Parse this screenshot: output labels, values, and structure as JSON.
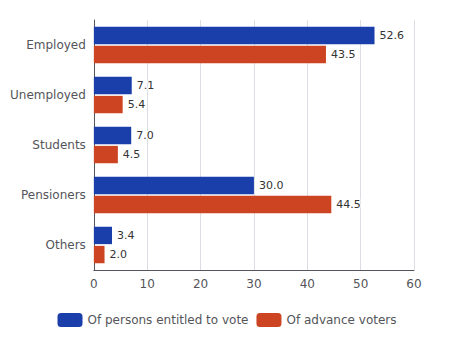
{
  "chart_data": {
    "type": "bar",
    "orientation": "horizontal",
    "categories": [
      "Employed",
      "Unemployed",
      "Students",
      "Pensioners",
      "Others"
    ],
    "series": [
      {
        "name": "Of persons entitled to vote",
        "color": "#1a3faa",
        "values": [
          52.6,
          7.1,
          7.0,
          30.0,
          3.4
        ],
        "value_labels": [
          "52.6",
          "7.1",
          "7.0",
          "30.0",
          "3.4"
        ]
      },
      {
        "name": "Of advance voters",
        "color": "#cc4422",
        "values": [
          43.5,
          5.4,
          4.5,
          44.5,
          2.0
        ],
        "value_labels": [
          "43.5",
          "5.4",
          "4.5",
          "44.5",
          "2.0"
        ]
      }
    ],
    "xlim": [
      0,
      60
    ],
    "xticks": [
      0,
      10,
      20,
      30,
      40,
      50,
      60
    ],
    "grid": true,
    "legend": "bottom",
    "data_labels": true
  }
}
